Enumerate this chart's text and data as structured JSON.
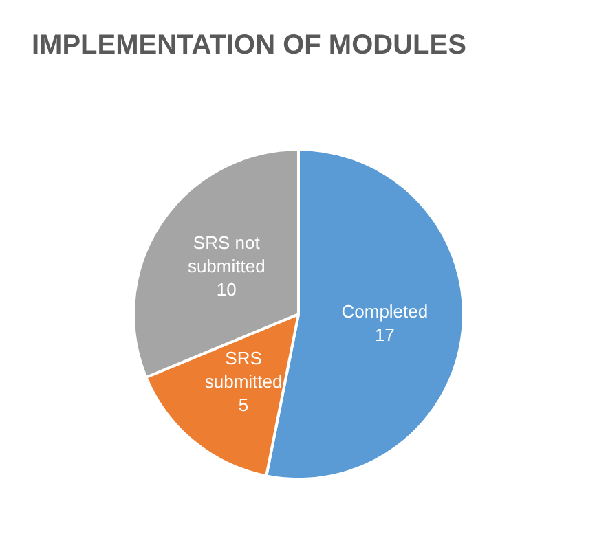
{
  "chart_data": {
    "type": "pie",
    "title": "IMPLEMENTATION OF MODULES",
    "categories": [
      "Completed",
      "SRS submitted",
      "SRS not submitted"
    ],
    "values": [
      17,
      5,
      10
    ],
    "colors": [
      "#5b9bd5",
      "#ed7d31",
      "#a5a5a5"
    ],
    "data_labels": true,
    "legend": false
  }
}
